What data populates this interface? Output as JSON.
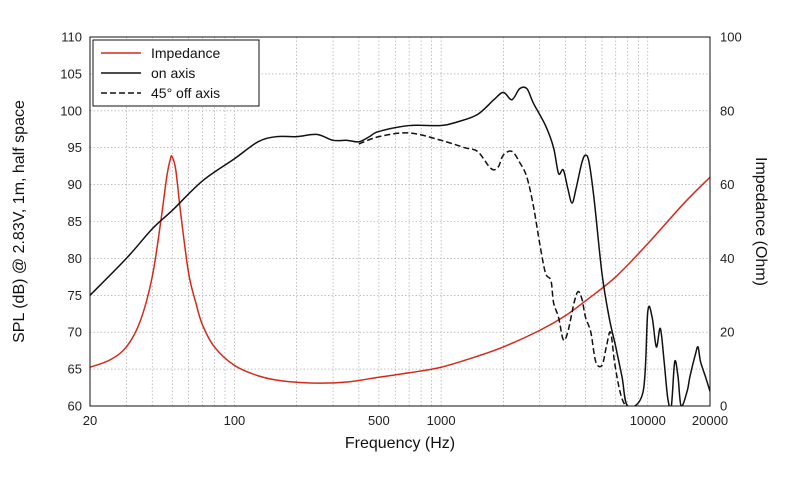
{
  "chart_data": {
    "type": "line",
    "xlabel": "Frequency (Hz)",
    "ylabel_left": "SPL (dB) @ 2.83V, 1m, half space",
    "ylabel_right": "Impedance (Ohm)",
    "x_scale": "log",
    "xlim": [
      20,
      20000
    ],
    "ylim_left": [
      60,
      110
    ],
    "ylim_right": [
      0,
      100
    ],
    "x_ticks": [
      20,
      100,
      500,
      1000,
      10000,
      20000
    ],
    "x_tick_labels": [
      "20",
      "100",
      "500",
      "1000",
      "10000",
      "20000"
    ],
    "y_ticks_left": [
      60,
      65,
      70,
      75,
      80,
      85,
      90,
      95,
      100,
      105,
      110
    ],
    "y_ticks_right": [
      0,
      20,
      40,
      60,
      80,
      100
    ],
    "grid": true,
    "legend_position": "top-left",
    "series": [
      {
        "name": "Impedance",
        "axis": "right",
        "color": "#d42a1c",
        "dash": "solid",
        "points": [
          [
            20,
            10.5
          ],
          [
            25,
            12.5
          ],
          [
            30,
            16
          ],
          [
            35,
            23
          ],
          [
            40,
            35
          ],
          [
            44,
            50
          ],
          [
            47,
            62
          ],
          [
            49,
            67
          ],
          [
            50,
            67.5
          ],
          [
            52,
            64
          ],
          [
            55,
            52
          ],
          [
            60,
            36
          ],
          [
            65,
            28
          ],
          [
            70,
            22
          ],
          [
            80,
            16
          ],
          [
            100,
            11
          ],
          [
            130,
            8.2
          ],
          [
            170,
            6.8
          ],
          [
            250,
            6.2
          ],
          [
            350,
            6.5
          ],
          [
            500,
            7.8
          ],
          [
            700,
            9
          ],
          [
            1000,
            10.5
          ],
          [
            1500,
            13.5
          ],
          [
            2000,
            16
          ],
          [
            3000,
            20.5
          ],
          [
            4000,
            24.5
          ],
          [
            5000,
            28.5
          ],
          [
            7000,
            35
          ],
          [
            10000,
            44
          ],
          [
            15000,
            55
          ],
          [
            20000,
            62
          ]
        ]
      },
      {
        "name": "on axis",
        "axis": "left",
        "color": "#111111",
        "dash": "solid",
        "points": [
          [
            20,
            75
          ],
          [
            30,
            80
          ],
          [
            40,
            84
          ],
          [
            50,
            86.5
          ],
          [
            70,
            90.5
          ],
          [
            100,
            93.5
          ],
          [
            130,
            95.8
          ],
          [
            160,
            96.5
          ],
          [
            200,
            96.5
          ],
          [
            250,
            96.8
          ],
          [
            300,
            96
          ],
          [
            350,
            96
          ],
          [
            400,
            95.8
          ],
          [
            450,
            96.5
          ],
          [
            500,
            97.2
          ],
          [
            700,
            98
          ],
          [
            1000,
            98
          ],
          [
            1200,
            98.5
          ],
          [
            1500,
            99.5
          ],
          [
            1800,
            101.5
          ],
          [
            2000,
            102.5
          ],
          [
            2200,
            101.5
          ],
          [
            2400,
            103
          ],
          [
            2600,
            103
          ],
          [
            2800,
            101
          ],
          [
            3200,
            98
          ],
          [
            3500,
            95
          ],
          [
            3700,
            91.5
          ],
          [
            3900,
            92
          ],
          [
            4100,
            89.5
          ],
          [
            4300,
            87.5
          ],
          [
            4500,
            89.5
          ],
          [
            4800,
            93
          ],
          [
            5000,
            94
          ],
          [
            5200,
            93
          ],
          [
            5500,
            88
          ],
          [
            6000,
            78
          ],
          [
            6500,
            72
          ],
          [
            7000,
            68
          ],
          [
            7500,
            64
          ],
          [
            8000,
            60
          ],
          [
            9500,
            62
          ],
          [
            10000,
            72.8
          ],
          [
            10500,
            72
          ],
          [
            11000,
            68
          ],
          [
            11500,
            70.5
          ],
          [
            12000,
            66
          ],
          [
            12500,
            61
          ],
          [
            13000,
            60
          ],
          [
            13500,
            66
          ],
          [
            14000,
            64
          ],
          [
            14500,
            60
          ],
          [
            15500,
            62
          ],
          [
            16000,
            64
          ],
          [
            17000,
            67
          ],
          [
            17500,
            68
          ],
          [
            18000,
            66
          ],
          [
            19000,
            64
          ],
          [
            20000,
            62
          ]
        ]
      },
      {
        "name": "45° off axis",
        "axis": "left",
        "color": "#111111",
        "dash": "dashed",
        "points": [
          [
            400,
            95.5
          ],
          [
            500,
            96.5
          ],
          [
            700,
            97
          ],
          [
            1000,
            96
          ],
          [
            1300,
            95
          ],
          [
            1500,
            94.5
          ],
          [
            1700,
            92.5
          ],
          [
            1800,
            92
          ],
          [
            1900,
            92.5
          ],
          [
            2000,
            94
          ],
          [
            2200,
            94.5
          ],
          [
            2400,
            93
          ],
          [
            2600,
            91
          ],
          [
            2800,
            87
          ],
          [
            3000,
            82
          ],
          [
            3200,
            78
          ],
          [
            3400,
            77
          ],
          [
            3500,
            74
          ],
          [
            3700,
            72
          ],
          [
            3900,
            69
          ],
          [
            4100,
            70
          ],
          [
            4400,
            74
          ],
          [
            4600,
            75.5
          ],
          [
            4800,
            74.5
          ],
          [
            5000,
            72
          ],
          [
            5300,
            70
          ],
          [
            5600,
            66
          ],
          [
            6000,
            65.5
          ],
          [
            6300,
            68
          ],
          [
            6600,
            70
          ],
          [
            6900,
            66
          ],
          [
            7200,
            63
          ],
          [
            7500,
            61
          ],
          [
            7800,
            60
          ]
        ]
      }
    ]
  }
}
